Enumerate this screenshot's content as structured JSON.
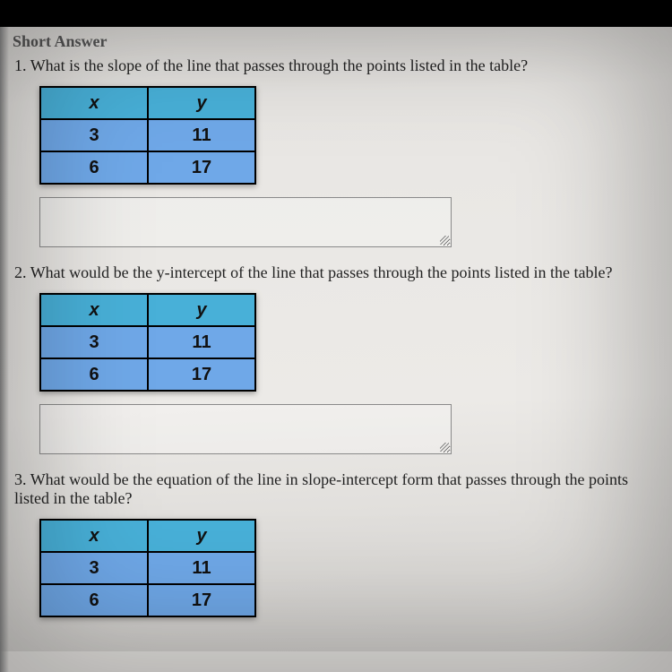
{
  "section_title": "Short Answer",
  "questions": [
    {
      "num": "1.",
      "text": "What is the slope of the line that passes through the points listed in the table?"
    },
    {
      "num": "2.",
      "text": "What would be the y-intercept of the line that passes through the points listed in the table?"
    },
    {
      "num": "3.",
      "text": "What would be the equation of the line in slope-intercept form that passes through the points listed in the table?"
    }
  ],
  "table": {
    "headers": {
      "x": "x",
      "y": "y"
    },
    "rows": [
      {
        "x": "3",
        "y": "11"
      },
      {
        "x": "6",
        "y": "17"
      }
    ],
    "header_bg": "#48b0d8",
    "cell_bg": "#6fa8e8"
  }
}
